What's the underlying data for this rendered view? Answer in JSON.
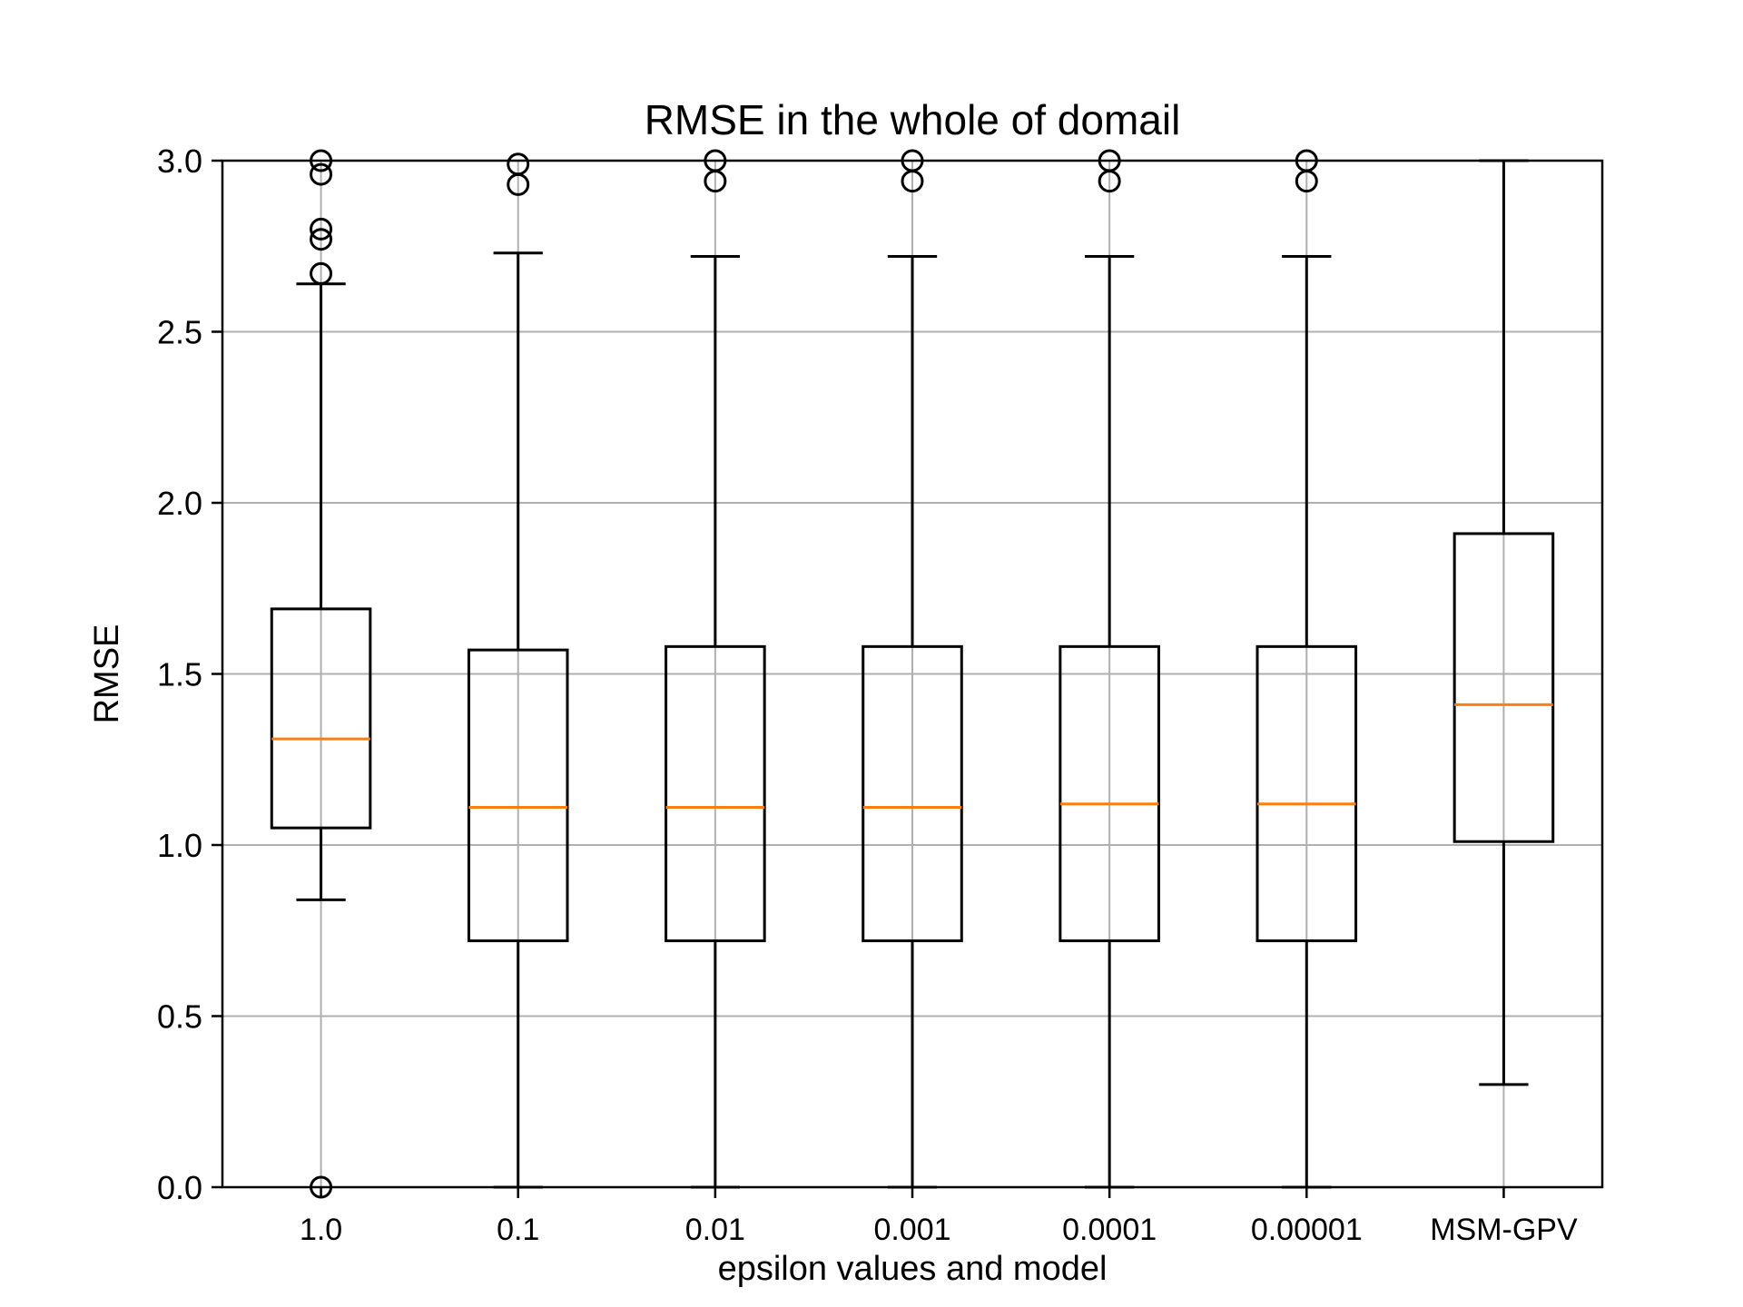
{
  "chart_data": {
    "type": "box",
    "title": "RMSE in the whole of domail",
    "xlabel": "epsilon values and model",
    "ylabel": "RMSE",
    "ylim": [
      0,
      3.0
    ],
    "yticks": [
      "0.0",
      "0.5",
      "1.0",
      "1.5",
      "2.0",
      "2.5",
      "3.0"
    ],
    "grid": true,
    "categories": [
      "1.0",
      "0.1",
      "0.01",
      "0.001",
      "0.0001",
      "0.00001",
      "MSM-GPV"
    ],
    "boxes": [
      {
        "category": "1.0",
        "whisker_low": 0.84,
        "q1": 1.05,
        "median": 1.31,
        "q3": 1.69,
        "whisker_high": 2.64,
        "outliers": [
          0.0,
          2.67,
          2.77,
          2.8,
          2.96,
          3.0
        ]
      },
      {
        "category": "0.1",
        "whisker_low": 0.0,
        "q1": 0.72,
        "median": 1.11,
        "q3": 1.57,
        "whisker_high": 2.73,
        "outliers": [
          2.93,
          2.99
        ]
      },
      {
        "category": "0.01",
        "whisker_low": 0.0,
        "q1": 0.72,
        "median": 1.11,
        "q3": 1.58,
        "whisker_high": 2.72,
        "outliers": [
          2.94,
          3.0
        ]
      },
      {
        "category": "0.001",
        "whisker_low": 0.0,
        "q1": 0.72,
        "median": 1.11,
        "q3": 1.58,
        "whisker_high": 2.72,
        "outliers": [
          2.94,
          3.0
        ]
      },
      {
        "category": "0.0001",
        "whisker_low": 0.0,
        "q1": 0.72,
        "median": 1.12,
        "q3": 1.58,
        "whisker_high": 2.72,
        "outliers": [
          2.94,
          3.0
        ]
      },
      {
        "category": "0.00001",
        "whisker_low": 0.0,
        "q1": 0.72,
        "median": 1.12,
        "q3": 1.58,
        "whisker_high": 2.72,
        "outliers": [
          2.94,
          3.0
        ]
      },
      {
        "category": "MSM-GPV",
        "whisker_low": 0.3,
        "q1": 1.01,
        "median": 1.41,
        "q3": 1.91,
        "whisker_high": 3.0,
        "outliers": []
      }
    ],
    "colors": {
      "box": "#000000",
      "median": "#ff7f0e",
      "grid": "#b0b0b0"
    }
  }
}
